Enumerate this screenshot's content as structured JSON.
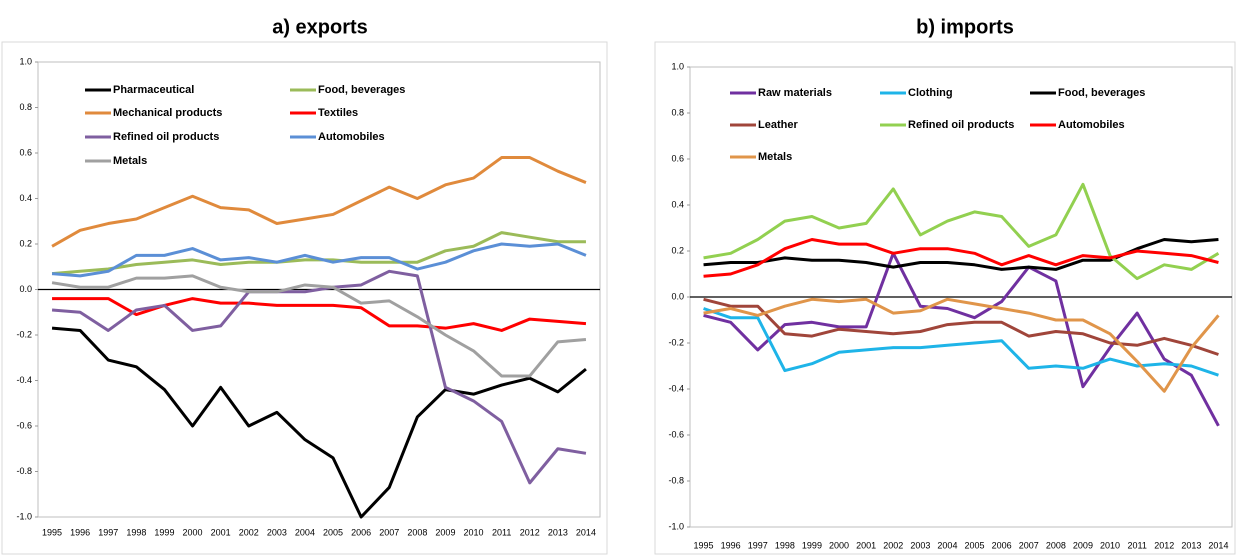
{
  "chart_data": [
    {
      "type": "line",
      "title": "a) exports",
      "categories": [
        "1995",
        "1996",
        "1997",
        "1998",
        "1999",
        "2000",
        "2001",
        "2002",
        "2003",
        "2004",
        "2005",
        "2006",
        "2007",
        "2008",
        "2009",
        "2010",
        "2011",
        "2012",
        "2013",
        "2014"
      ],
      "ylim": [
        -1.0,
        1.0
      ],
      "yticks": [
        {
          "value": -1.0,
          "label": "-1.0"
        },
        -0.8,
        -0.6,
        -0.4,
        -0.2,
        {
          "value": 0,
          "label": "0.0"
        },
        0.2,
        0.4,
        0.6,
        0.8,
        {
          "value": 1.0,
          "label": "1.0"
        }
      ],
      "series": [
        {
          "name": "Pharmaceutical",
          "color": "#000000",
          "values": [
            -0.17,
            -0.18,
            -0.31,
            -0.34,
            -0.44,
            -0.6,
            -0.43,
            -0.6,
            -0.54,
            -0.66,
            -0.74,
            -1.0,
            -0.87,
            -0.56,
            -0.44,
            -0.46,
            -0.42,
            -0.39,
            -0.45,
            -0.35
          ]
        },
        {
          "name": "Food, beverages",
          "color": "#9bbb59",
          "values": [
            0.07,
            0.08,
            0.09,
            0.11,
            0.12,
            0.13,
            0.11,
            0.12,
            0.12,
            0.13,
            0.13,
            0.12,
            0.12,
            0.12,
            0.17,
            0.19,
            0.25,
            0.23,
            0.21,
            0.21
          ]
        },
        {
          "name": "Mechanical products",
          "color": "#e08a3c",
          "values": [
            0.19,
            0.26,
            0.29,
            0.31,
            0.36,
            0.41,
            0.36,
            0.35,
            0.29,
            0.31,
            0.33,
            0.39,
            0.45,
            0.4,
            0.46,
            0.49,
            0.58,
            0.58,
            0.52,
            0.47
          ]
        },
        {
          "name": "Textiles",
          "color": "#ff0000",
          "values": [
            -0.04,
            -0.04,
            -0.04,
            -0.11,
            -0.07,
            -0.04,
            -0.06,
            -0.06,
            -0.07,
            -0.07,
            -0.07,
            -0.08,
            -0.16,
            -0.16,
            -0.17,
            -0.15,
            -0.18,
            -0.13,
            -0.14,
            -0.15
          ]
        },
        {
          "name": "Refined oil products",
          "color": "#7f5fa0",
          "values": [
            -0.09,
            -0.1,
            -0.18,
            -0.09,
            -0.07,
            -0.18,
            -0.16,
            -0.01,
            -0.01,
            -0.01,
            0.01,
            0.02,
            0.08,
            0.06,
            -0.43,
            -0.49,
            -0.58,
            -0.85,
            -0.7,
            -0.72
          ]
        },
        {
          "name": "Automobiles",
          "color": "#5b8fd6",
          "values": [
            0.07,
            0.06,
            0.08,
            0.15,
            0.15,
            0.18,
            0.13,
            0.14,
            0.12,
            0.15,
            0.12,
            0.14,
            0.14,
            0.09,
            0.12,
            0.17,
            0.2,
            0.19,
            0.2,
            0.15
          ]
        },
        {
          "name": "Metals",
          "color": "#a0a0a0",
          "values": [
            0.03,
            0.01,
            0.01,
            0.05,
            0.05,
            0.06,
            0.01,
            -0.01,
            -0.01,
            0.02,
            0.01,
            -0.06,
            -0.05,
            -0.12,
            -0.2,
            -0.27,
            -0.38,
            -0.38,
            -0.23,
            -0.22
          ]
        }
      ]
    },
    {
      "type": "line",
      "title": "b) imports",
      "categories": [
        "1995",
        "1996",
        "1997",
        "1998",
        "1999",
        "2000",
        "2001",
        "2002",
        "2003",
        "2004",
        "2005",
        "2006",
        "2007",
        "2008",
        "2009",
        "2010",
        "2011",
        "2012",
        "2013",
        "2014"
      ],
      "ylim": [
        -1.0,
        1.0
      ],
      "yticks": [
        {
          "value": -1.0,
          "label": "-1.0"
        },
        -0.8,
        -0.6,
        -0.4,
        -0.2,
        {
          "value": 0,
          "label": "0.0"
        },
        0.2,
        0.4,
        0.6,
        0.8,
        {
          "value": 1.0,
          "label": "1.0"
        }
      ],
      "series": [
        {
          "name": "Raw materials",
          "color": "#7030a0",
          "values": [
            -0.08,
            -0.11,
            -0.23,
            -0.12,
            -0.11,
            -0.13,
            -0.13,
            0.19,
            -0.04,
            -0.05,
            -0.09,
            -0.02,
            0.13,
            0.07,
            -0.39,
            -0.22,
            -0.07,
            -0.27,
            -0.34,
            -0.56
          ]
        },
        {
          "name": "Clothing",
          "color": "#1eb4e8",
          "values": [
            -0.05,
            -0.09,
            -0.09,
            -0.32,
            -0.29,
            -0.24,
            -0.23,
            -0.22,
            -0.22,
            -0.21,
            -0.2,
            -0.19,
            -0.31,
            -0.3,
            -0.31,
            -0.27,
            -0.3,
            -0.29,
            -0.3,
            -0.34
          ]
        },
        {
          "name": "Food, beverages",
          "color": "#000000",
          "values": [
            0.14,
            0.15,
            0.15,
            0.17,
            0.16,
            0.16,
            0.15,
            0.13,
            0.15,
            0.15,
            0.14,
            0.12,
            0.13,
            0.12,
            0.16,
            0.16,
            0.21,
            0.25,
            0.24,
            0.25
          ]
        },
        {
          "name": "Leather",
          "color": "#a0453a",
          "values": [
            -0.01,
            -0.04,
            -0.04,
            -0.16,
            -0.17,
            -0.14,
            -0.15,
            -0.16,
            -0.15,
            -0.12,
            -0.11,
            -0.11,
            -0.17,
            -0.15,
            -0.16,
            -0.2,
            -0.21,
            -0.18,
            -0.21,
            -0.25
          ]
        },
        {
          "name": "Refined oil products",
          "color": "#92d050",
          "values": [
            0.17,
            0.19,
            0.25,
            0.33,
            0.35,
            0.3,
            0.32,
            0.47,
            0.27,
            0.33,
            0.37,
            0.35,
            0.22,
            0.27,
            0.49,
            0.18,
            0.08,
            0.14,
            0.12,
            0.19
          ]
        },
        {
          "name": "Automobiles",
          "color": "#ff0000",
          "values": [
            0.09,
            0.1,
            0.14,
            0.21,
            0.25,
            0.23,
            0.23,
            0.19,
            0.21,
            0.21,
            0.19,
            0.14,
            0.18,
            0.14,
            0.18,
            0.17,
            0.2,
            0.19,
            0.18,
            0.15
          ]
        },
        {
          "name": "Metals",
          "color": "#e0954a",
          "values": [
            -0.07,
            -0.05,
            -0.08,
            -0.04,
            -0.01,
            -0.02,
            -0.01,
            -0.07,
            -0.06,
            -0.01,
            -0.03,
            -0.05,
            -0.07,
            -0.1,
            -0.1,
            -0.16,
            -0.28,
            -0.41,
            -0.22,
            -0.08
          ]
        }
      ]
    }
  ]
}
